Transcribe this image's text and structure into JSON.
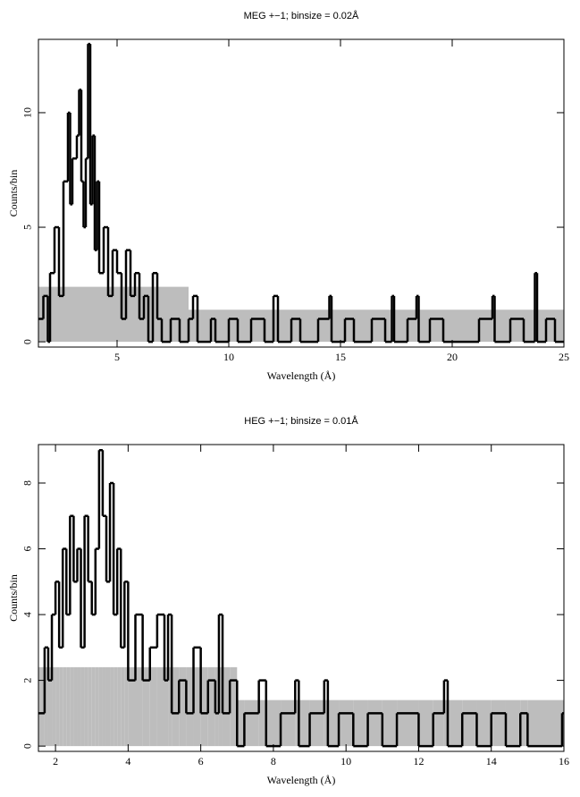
{
  "chart_data": [
    {
      "type": "step",
      "title": "MEG +−1; binsize = 0.02Å",
      "x_label": "Wavelength (Å)",
      "y_label": "Counts/bin",
      "x": [
        1.5,
        1.7,
        1.9,
        2.0,
        2.2,
        2.4,
        2.6,
        2.8,
        2.9,
        3.0,
        3.2,
        3.3,
        3.4,
        3.5,
        3.6,
        3.7,
        3.8,
        3.9,
        4.0,
        4.1,
        4.2,
        4.4,
        4.6,
        4.8,
        5.0,
        5.2,
        5.4,
        5.6,
        5.8,
        6.0,
        6.2,
        6.4,
        6.6,
        6.8,
        7.0,
        7.4,
        7.8,
        8.2,
        8.4,
        8.6,
        9.2,
        9.4,
        10.0,
        10.4,
        11.0,
        11.6,
        12.0,
        12.2,
        12.8,
        13.2,
        14.0,
        14.5,
        14.6,
        15.2,
        15.6,
        16.4,
        17.0,
        17.3,
        17.4,
        18.0,
        18.4,
        18.5,
        19.0,
        19.6,
        21.2,
        21.8,
        21.9,
        22.6,
        23.2,
        23.7,
        23.8,
        24.2,
        24.6
      ],
      "series": [
        {
          "color": "#bdbdbd",
          "values": [
            2.4,
            2.4,
            2.4,
            2.4,
            2.4,
            2.4,
            2.4,
            2.4,
            2.4,
            2.4,
            2.4,
            2.4,
            2.4,
            2.4,
            2.4,
            2.4,
            2.4,
            2.4,
            2.4,
            2.4,
            2.4,
            2.4,
            2.4,
            2.4,
            2.4,
            2.4,
            2.4,
            2.4,
            2.4,
            2.4,
            2.4,
            2.4,
            2.4,
            2.4,
            2.4,
            2.4,
            2.4,
            1.4,
            1.4,
            1.4,
            1.4,
            1.4,
            1.4,
            1.4,
            1.4,
            1.4,
            1.4,
            1.4,
            1.4,
            1.4,
            1.4,
            1.4,
            1.4,
            1.4,
            1.4,
            1.4,
            1.4,
            1.4,
            1.4,
            1.4,
            1.4,
            1.4,
            1.4,
            1.4,
            1.4,
            1.4,
            1.4,
            1.4,
            1.4,
            1.4,
            1.4,
            1.4,
            1.4
          ]
        },
        {
          "color": "#000000",
          "values": [
            1,
            2,
            0,
            3,
            5,
            2,
            7,
            10,
            6,
            8,
            9,
            11,
            7,
            5,
            8,
            13,
            6,
            9,
            4,
            7,
            3,
            5,
            2,
            4,
            3,
            1,
            4,
            2,
            3,
            1,
            2,
            0,
            3,
            1,
            0,
            1,
            0,
            1,
            2,
            0,
            1,
            0,
            1,
            0,
            1,
            0,
            2,
            0,
            1,
            0,
            1,
            2,
            0,
            1,
            0,
            1,
            0,
            2,
            0,
            1,
            2,
            0,
            1,
            0,
            1,
            2,
            0,
            1,
            0,
            3,
            0,
            1,
            0
          ]
        }
      ],
      "xlim": [
        1.48,
        25
      ],
      "ylim": [
        -0.23,
        13.2
      ],
      "xticks": [
        5,
        10,
        15,
        20,
        25
      ],
      "yticks": [
        0,
        5,
        10
      ]
    },
    {
      "type": "step",
      "title": "HEG +−1; binsize = 0.01Å",
      "x_label": "Wavelength (Å)",
      "y_label": "Counts/bin",
      "x": [
        1.53,
        1.7,
        1.8,
        1.9,
        2.0,
        2.1,
        2.2,
        2.3,
        2.4,
        2.5,
        2.6,
        2.7,
        2.8,
        2.9,
        3.0,
        3.1,
        3.2,
        3.3,
        3.4,
        3.5,
        3.6,
        3.7,
        3.8,
        3.9,
        4.0,
        4.2,
        4.4,
        4.6,
        4.8,
        5.0,
        5.1,
        5.2,
        5.4,
        5.6,
        5.8,
        6.0,
        6.2,
        6.4,
        6.5,
        6.6,
        6.8,
        7.0,
        7.2,
        7.6,
        7.8,
        8.2,
        8.6,
        8.7,
        9.0,
        9.4,
        9.5,
        9.8,
        10.2,
        10.6,
        11.0,
        11.4,
        12.0,
        12.4,
        12.7,
        12.8,
        13.2,
        13.6,
        14.0,
        14.4,
        14.8,
        15.0,
        15.95
      ],
      "series": [
        {
          "color": "#bdbdbd",
          "values": [
            2.4,
            2.4,
            2.4,
            2.4,
            2.4,
            2.4,
            2.4,
            2.4,
            2.4,
            2.4,
            2.4,
            2.4,
            2.4,
            2.4,
            2.4,
            2.4,
            2.4,
            2.4,
            2.4,
            2.4,
            2.4,
            2.4,
            2.4,
            2.4,
            2.4,
            2.4,
            2.4,
            2.4,
            2.4,
            2.4,
            2.4,
            2.4,
            2.4,
            2.4,
            2.4,
            2.4,
            2.4,
            2.4,
            2.4,
            2.4,
            2.4,
            1.4,
            1.4,
            1.4,
            1.4,
            1.4,
            1.4,
            1.4,
            1.4,
            1.4,
            1.4,
            1.4,
            1.4,
            1.4,
            1.4,
            1.4,
            1.4,
            1.4,
            1.4,
            1.4,
            1.4,
            1.4,
            1.4,
            1.4,
            1.4,
            1.4,
            1.4
          ]
        },
        {
          "color": "#000000",
          "values": [
            1,
            3,
            2,
            4,
            5,
            3,
            6,
            4,
            7,
            5,
            6,
            3,
            7,
            5,
            4,
            6,
            9,
            7,
            5,
            8,
            4,
            6,
            3,
            5,
            2,
            4,
            2,
            3,
            4,
            2,
            4,
            1,
            2,
            1,
            3,
            1,
            2,
            1,
            4,
            1,
            2,
            0,
            1,
            2,
            0,
            1,
            2,
            0,
            1,
            2,
            0,
            1,
            0,
            1,
            0,
            1,
            0,
            1,
            2,
            0,
            1,
            0,
            1,
            0,
            1,
            0,
            1
          ]
        }
      ],
      "xlim": [
        1.53,
        16
      ],
      "ylim": [
        -0.16,
        9.17
      ],
      "xticks": [
        2,
        4,
        6,
        8,
        10,
        12,
        14,
        16
      ],
      "yticks": [
        0,
        2,
        4,
        6,
        8
      ]
    }
  ]
}
